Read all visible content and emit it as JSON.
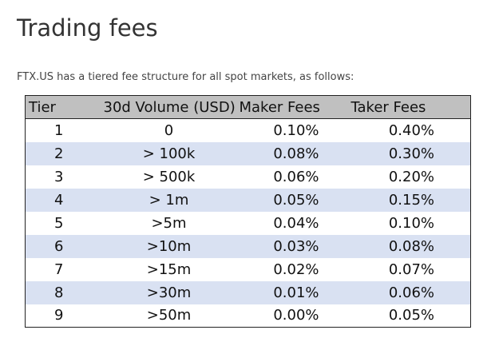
{
  "title": "Trading fees",
  "intro": "FTX.US has a tiered fee structure for all spot markets, as follows:",
  "table": {
    "headers": [
      "Tier",
      "30d Volume (USD)",
      "Maker Fees",
      "Taker Fees"
    ],
    "rows": [
      [
        "1",
        "0",
        "0.10%",
        "0.40%"
      ],
      [
        "2",
        "> 100k",
        "0.08%",
        "0.30%"
      ],
      [
        "3",
        "> 500k",
        "0.06%",
        "0.20%"
      ],
      [
        "4",
        "> 1m",
        "0.05%",
        "0.15%"
      ],
      [
        "5",
        ">5m",
        "0.04%",
        "0.10%"
      ],
      [
        "6",
        ">10m",
        "0.03%",
        "0.08%"
      ],
      [
        "7",
        ">15m",
        "0.02%",
        "0.07%"
      ],
      [
        "8",
        ">30m",
        "0.01%",
        "0.06%"
      ],
      [
        "9",
        ">50m",
        "0.00%",
        "0.05%"
      ]
    ]
  }
}
